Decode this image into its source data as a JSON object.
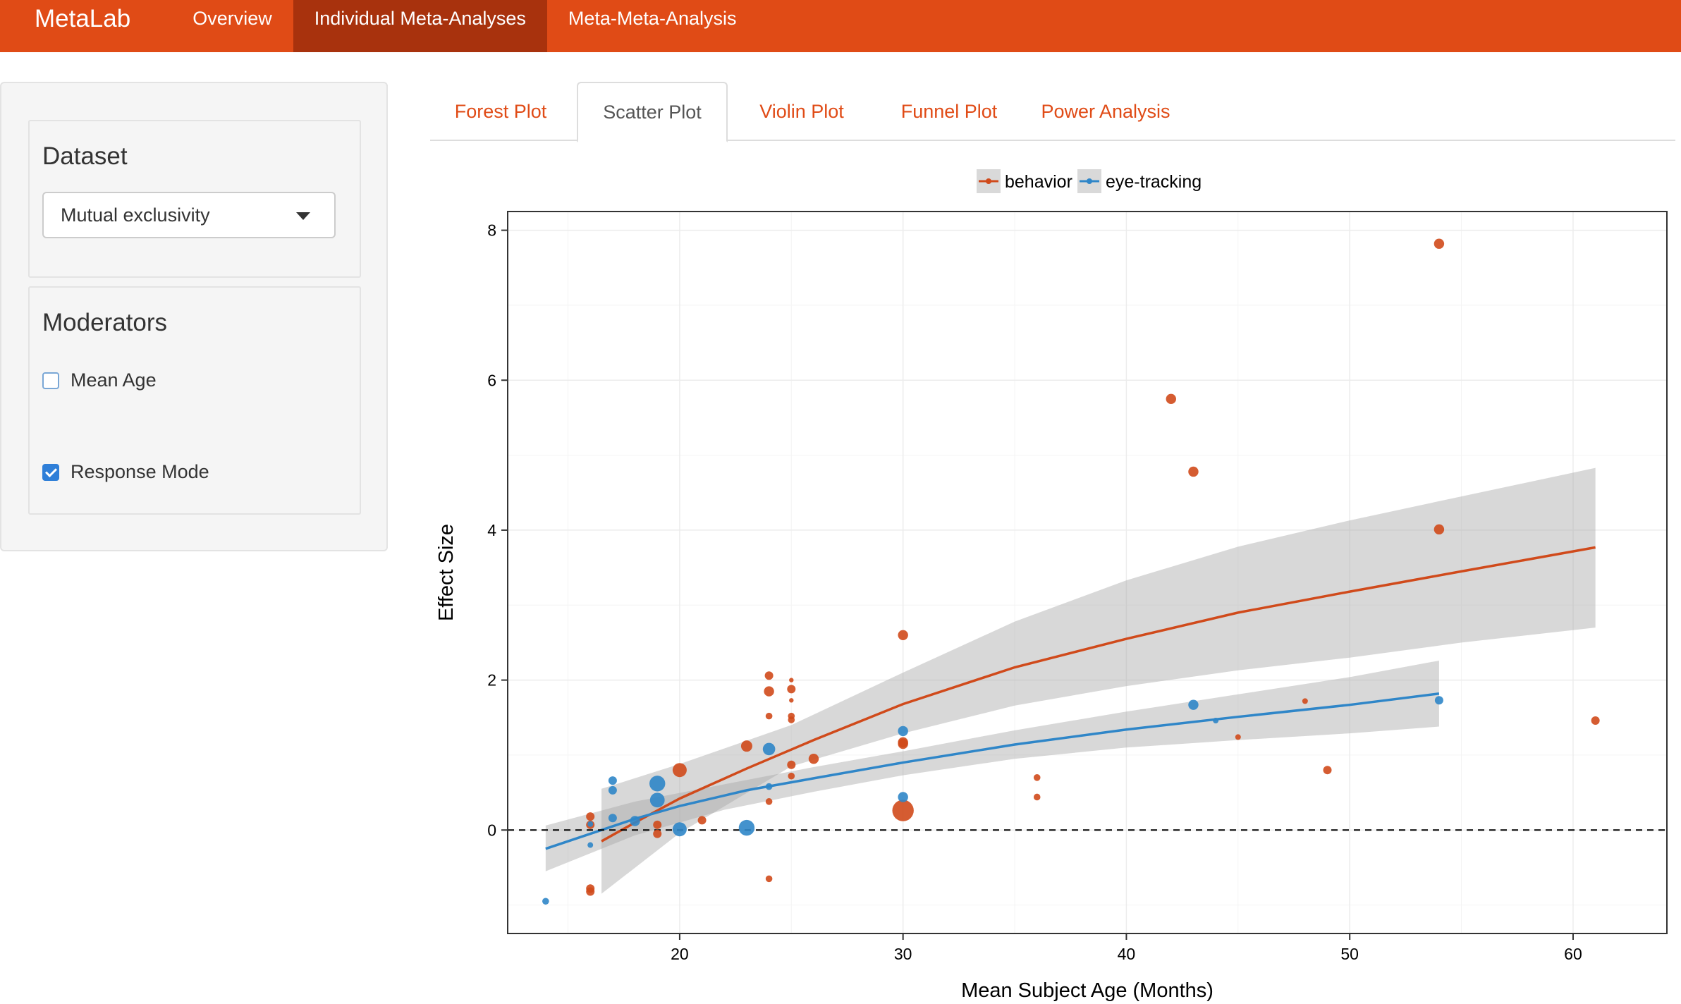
{
  "navbar": {
    "brand": "MetaLab",
    "items": [
      "Overview",
      "Individual Meta-Analyses",
      "Meta-Meta-Analysis"
    ],
    "active_index": 1,
    "color": "#e04b16",
    "active_color": "#a8320d"
  },
  "sidebar": {
    "dataset": {
      "title": "Dataset",
      "selected": "Mutual exclusivity"
    },
    "moderators": {
      "title": "Moderators",
      "options": [
        {
          "label": "Mean Age",
          "checked": false
        },
        {
          "label": "Response Mode",
          "checked": true
        }
      ]
    }
  },
  "tabs": {
    "items": [
      "Forest Plot",
      "Scatter Plot",
      "Violin Plot",
      "Funnel Plot",
      "Power Analysis"
    ],
    "active_index": 1
  },
  "chart_data": {
    "type": "scatter",
    "xlabel": "Mean Subject Age (Months)",
    "ylabel": "Effect Size",
    "xlim": [
      12.3,
      64.2
    ],
    "ylim": [
      -1.38,
      8.25
    ],
    "xticks": [
      20,
      30,
      40,
      50,
      60
    ],
    "yticks": [
      0,
      2,
      4,
      6,
      8
    ],
    "grid": true,
    "reference_line": {
      "y": 0,
      "style": "dashed"
    },
    "legend": {
      "position": "top-center"
    },
    "series": [
      {
        "name": "behavior",
        "color": "#d04a1b",
        "points": [
          {
            "x": 16,
            "y": 0.18,
            "s": 1.5
          },
          {
            "x": 16,
            "y": 0.07,
            "s": 1.5
          },
          {
            "x": 16,
            "y": -0.78,
            "s": 1.5
          },
          {
            "x": 16,
            "y": -0.82,
            "s": 1.5
          },
          {
            "x": 19,
            "y": 0.07,
            "s": 1.5
          },
          {
            "x": 19,
            "y": -0.05,
            "s": 1.5
          },
          {
            "x": 20,
            "y": 0.8,
            "s": 2.5
          },
          {
            "x": 21,
            "y": 0.13,
            "s": 1.5
          },
          {
            "x": 23,
            "y": 1.12,
            "s": 2
          },
          {
            "x": 24,
            "y": 2.06,
            "s": 1.5
          },
          {
            "x": 24,
            "y": 1.85,
            "s": 1.8
          },
          {
            "x": 24,
            "y": 1.52,
            "s": 1.2
          },
          {
            "x": 24,
            "y": 0.38,
            "s": 1.2
          },
          {
            "x": 24,
            "y": -0.65,
            "s": 1.2
          },
          {
            "x": 25,
            "y": 2.0,
            "s": 0.8
          },
          {
            "x": 25,
            "y": 1.88,
            "s": 1.5
          },
          {
            "x": 25,
            "y": 1.73,
            "s": 0.8
          },
          {
            "x": 25,
            "y": 1.52,
            "s": 1.2
          },
          {
            "x": 25,
            "y": 1.47,
            "s": 1.2
          },
          {
            "x": 25,
            "y": 0.87,
            "s": 1.5
          },
          {
            "x": 25,
            "y": 0.72,
            "s": 1.2
          },
          {
            "x": 26,
            "y": 0.95,
            "s": 1.8
          },
          {
            "x": 30,
            "y": 2.6,
            "s": 1.8
          },
          {
            "x": 30,
            "y": 1.17,
            "s": 1.8
          },
          {
            "x": 30,
            "y": 1.15,
            "s": 1.8
          },
          {
            "x": 30,
            "y": 0.26,
            "s": 3.8
          },
          {
            "x": 36,
            "y": 0.7,
            "s": 1.2
          },
          {
            "x": 36,
            "y": 0.44,
            "s": 1.2
          },
          {
            "x": 42,
            "y": 5.75,
            "s": 1.8
          },
          {
            "x": 43,
            "y": 4.78,
            "s": 1.8
          },
          {
            "x": 45,
            "y": 1.24,
            "s": 1
          },
          {
            "x": 48,
            "y": 1.72,
            "s": 1
          },
          {
            "x": 49,
            "y": 0.8,
            "s": 1.5
          },
          {
            "x": 54,
            "y": 7.82,
            "s": 1.8
          },
          {
            "x": 54,
            "y": 4.01,
            "s": 1.8
          },
          {
            "x": 61,
            "y": 1.46,
            "s": 1.5
          }
        ],
        "fit": [
          {
            "x": 16.5,
            "y": -0.15
          },
          {
            "x": 18,
            "y": 0.1
          },
          {
            "x": 20,
            "y": 0.42
          },
          {
            "x": 23,
            "y": 0.82
          },
          {
            "x": 26,
            "y": 1.2
          },
          {
            "x": 30,
            "y": 1.68
          },
          {
            "x": 35,
            "y": 2.17
          },
          {
            "x": 40,
            "y": 2.55
          },
          {
            "x": 45,
            "y": 2.9
          },
          {
            "x": 50,
            "y": 3.18
          },
          {
            "x": 55,
            "y": 3.45
          },
          {
            "x": 61,
            "y": 3.77
          }
        ],
        "band_upper": [
          {
            "x": 16.5,
            "y": 0.55
          },
          {
            "x": 20,
            "y": 0.88
          },
          {
            "x": 25,
            "y": 1.4
          },
          {
            "x": 30,
            "y": 2.1
          },
          {
            "x": 35,
            "y": 2.78
          },
          {
            "x": 40,
            "y": 3.33
          },
          {
            "x": 45,
            "y": 3.78
          },
          {
            "x": 50,
            "y": 4.13
          },
          {
            "x": 55,
            "y": 4.45
          },
          {
            "x": 61,
            "y": 4.83
          }
        ],
        "band_lower": [
          {
            "x": 16.5,
            "y": -0.85
          },
          {
            "x": 20,
            "y": -0.04
          },
          {
            "x": 25,
            "y": 0.85
          },
          {
            "x": 30,
            "y": 1.29
          },
          {
            "x": 35,
            "y": 1.66
          },
          {
            "x": 40,
            "y": 1.92
          },
          {
            "x": 45,
            "y": 2.13
          },
          {
            "x": 50,
            "y": 2.3
          },
          {
            "x": 55,
            "y": 2.5
          },
          {
            "x": 61,
            "y": 2.7
          }
        ]
      },
      {
        "name": "eye-tracking",
        "color": "#2f86c8",
        "points": [
          {
            "x": 14,
            "y": -0.95,
            "s": 1.2
          },
          {
            "x": 16,
            "y": -0.2,
            "s": 1
          },
          {
            "x": 16,
            "y": 0.08,
            "s": 1
          },
          {
            "x": 17,
            "y": 0.66,
            "s": 1.5
          },
          {
            "x": 17,
            "y": 0.53,
            "s": 1.5
          },
          {
            "x": 17,
            "y": 0.16,
            "s": 1.5
          },
          {
            "x": 18,
            "y": 0.12,
            "s": 1.8
          },
          {
            "x": 19,
            "y": 0.62,
            "s": 2.8
          },
          {
            "x": 19,
            "y": 0.4,
            "s": 2.6
          },
          {
            "x": 20,
            "y": 0.01,
            "s": 2.5
          },
          {
            "x": 23,
            "y": 0.03,
            "s": 2.8
          },
          {
            "x": 24,
            "y": 1.08,
            "s": 2.2
          },
          {
            "x": 24,
            "y": 0.58,
            "s": 1.2
          },
          {
            "x": 30,
            "y": 1.32,
            "s": 1.8
          },
          {
            "x": 30,
            "y": 0.44,
            "s": 1.8
          },
          {
            "x": 43,
            "y": 1.67,
            "s": 1.8
          },
          {
            "x": 44,
            "y": 1.46,
            "s": 1
          },
          {
            "x": 54,
            "y": 1.73,
            "s": 1.5
          }
        ],
        "fit": [
          {
            "x": 14,
            "y": -0.25
          },
          {
            "x": 16,
            "y": -0.05
          },
          {
            "x": 18,
            "y": 0.15
          },
          {
            "x": 20,
            "y": 0.32
          },
          {
            "x": 23,
            "y": 0.53
          },
          {
            "x": 26,
            "y": 0.69
          },
          {
            "x": 30,
            "y": 0.9
          },
          {
            "x": 35,
            "y": 1.14
          },
          {
            "x": 40,
            "y": 1.34
          },
          {
            "x": 45,
            "y": 1.51
          },
          {
            "x": 50,
            "y": 1.67
          },
          {
            "x": 54,
            "y": 1.82
          }
        ],
        "band_upper": [
          {
            "x": 14,
            "y": 0.06
          },
          {
            "x": 18,
            "y": 0.38
          },
          {
            "x": 22,
            "y": 0.61
          },
          {
            "x": 26,
            "y": 0.84
          },
          {
            "x": 30,
            "y": 1.05
          },
          {
            "x": 35,
            "y": 1.33
          },
          {
            "x": 40,
            "y": 1.58
          },
          {
            "x": 45,
            "y": 1.81
          },
          {
            "x": 50,
            "y": 2.04
          },
          {
            "x": 54,
            "y": 2.26
          }
        ],
        "band_lower": [
          {
            "x": 14,
            "y": -0.55
          },
          {
            "x": 18,
            "y": -0.07
          },
          {
            "x": 22,
            "y": 0.27
          },
          {
            "x": 26,
            "y": 0.51
          },
          {
            "x": 30,
            "y": 0.73
          },
          {
            "x": 35,
            "y": 0.95
          },
          {
            "x": 40,
            "y": 1.1
          },
          {
            "x": 45,
            "y": 1.2
          },
          {
            "x": 50,
            "y": 1.29
          },
          {
            "x": 54,
            "y": 1.38
          }
        ]
      }
    ]
  }
}
